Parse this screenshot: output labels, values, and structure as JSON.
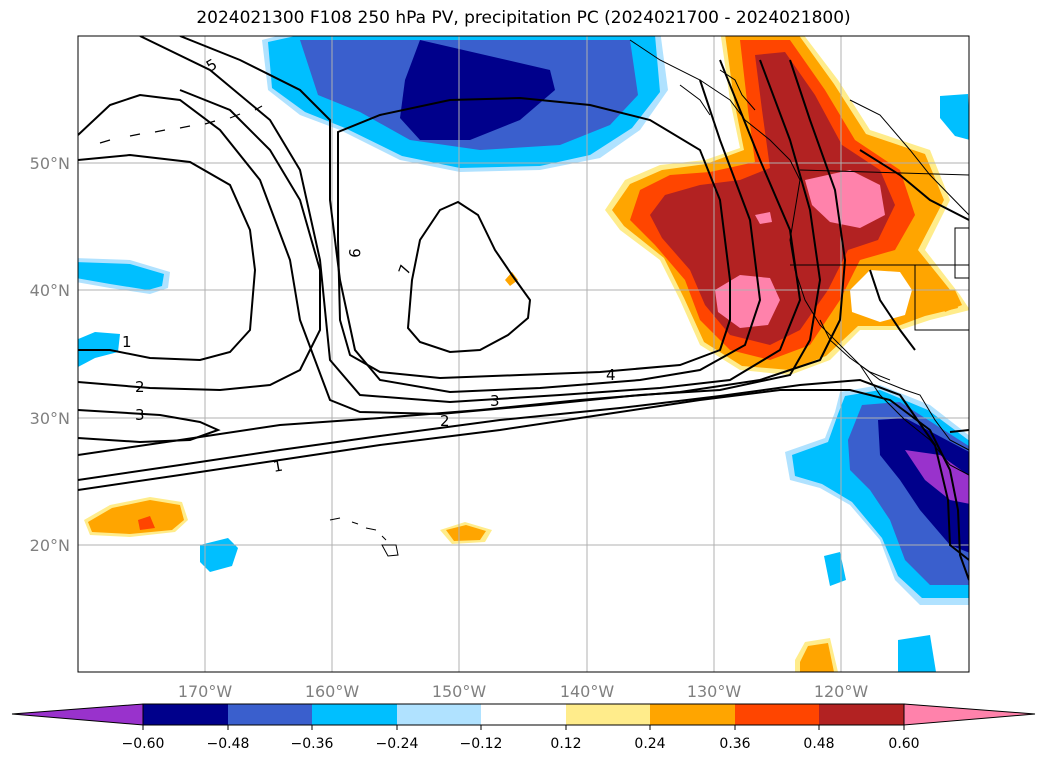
{
  "title": "2024021300 F108 250 hPa PV, precipitation PC (2024021700 - 2024021800)",
  "map": {
    "lat_labels": [
      "50°N",
      "40°N",
      "30°N",
      "20°N"
    ],
    "lon_labels": [
      "170°W",
      "160°W",
      "150°W",
      "140°W",
      "130°W",
      "120°W"
    ],
    "gridline_color": "#b0b0b0",
    "contour_labels": [
      "5",
      "6",
      "7",
      "1",
      "2",
      "3",
      "4",
      "2",
      "3",
      "1"
    ]
  },
  "colorbar": {
    "tick_labels": [
      "−0.60",
      "−0.48",
      "−0.36",
      "−0.24",
      "−0.12",
      "0.12",
      "0.24",
      "0.36",
      "0.48",
      "0.60"
    ],
    "colors": [
      "#9932cc",
      "#00008b",
      "#3a5fcd",
      "#00bfff",
      "#b0e2ff",
      "#ffffff",
      "#ffec8b",
      "#ffa500",
      "#ff4500",
      "#b22222",
      "#ff82ab"
    ]
  },
  "palette": {
    "neg_extreme": "#9932cc",
    "neg_very_strong": "#00008b",
    "neg_strong": "#3a5fcd",
    "neg_moderate": "#00bfff",
    "neg_weak": "#b0e2ff",
    "pos_weak": "#ffec8b",
    "pos_moderate": "#ffa500",
    "pos_strong": "#ff4500",
    "pos_very_strong": "#b22222",
    "pos_extreme": "#ff82ab"
  }
}
